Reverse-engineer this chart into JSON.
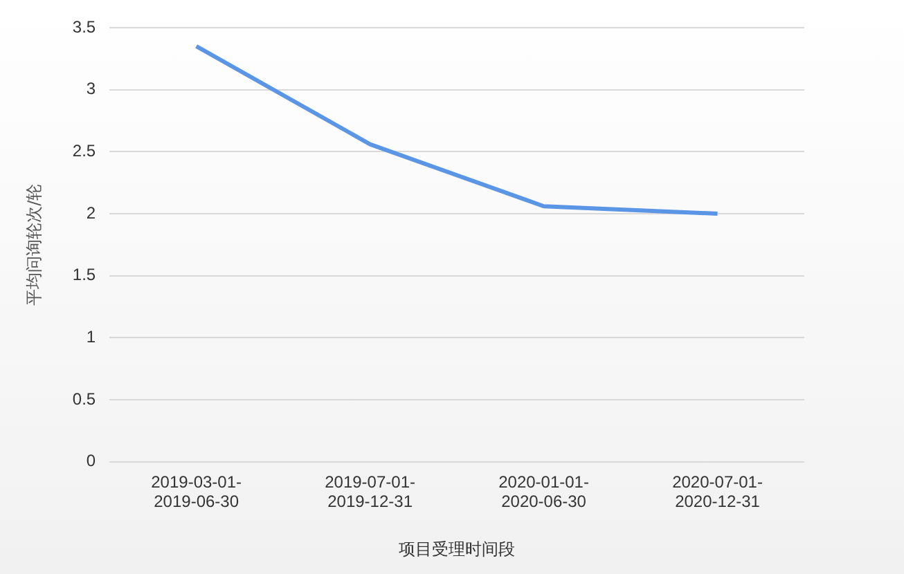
{
  "chart_data": {
    "type": "line",
    "xlabel": "项目受理时间段",
    "ylabel": "平均问询轮次/轮",
    "categories": [
      "2019-03-01-2019-06-30",
      "2019-07-01-2019-12-31",
      "2020-01-01-2020-06-30",
      "2020-07-01-2020-12-31"
    ],
    "series": [
      {
        "color": "#5b95e5",
        "values": [
          3.35,
          2.56,
          2.06,
          2.0
        ]
      }
    ],
    "ylim": [
      0,
      3.5
    ],
    "yticks": [
      0,
      0.5,
      1,
      1.5,
      2,
      2.5,
      3,
      3.5
    ],
    "grid": "y",
    "legend": false,
    "marker": "none",
    "line_style": "solid"
  }
}
